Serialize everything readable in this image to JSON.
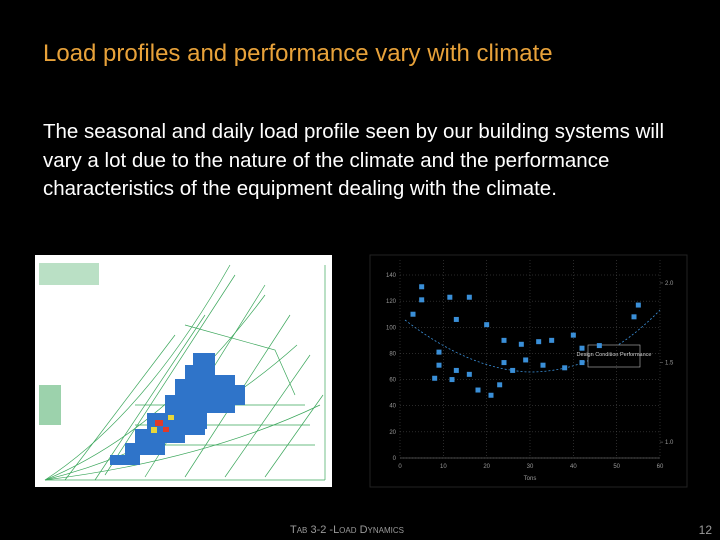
{
  "slide": {
    "title": "Load profiles and performance vary with climate",
    "body": "The seasonal and daily load profile seen by our building systems will vary a lot due to the nature of the climate and the performance characteristics of the equipment dealing with the climate.",
    "footer": "Tab 3-2 -Load Dynamics",
    "page_number": "12"
  },
  "chart_data": {
    "type": "scatter",
    "xlabel": "Tons",
    "annotation": "Design Condition Performance",
    "color": "#3a8fd8",
    "x": [
      5,
      5,
      11.5,
      16,
      13,
      3,
      20,
      24,
      28,
      32,
      35,
      40,
      54,
      55,
      42,
      46,
      24,
      26,
      29,
      33,
      38,
      42,
      8,
      16,
      18,
      21,
      23,
      9,
      13,
      12,
      9
    ],
    "y": [
      121,
      131,
      123,
      123,
      106,
      110,
      102,
      90,
      87,
      89,
      90,
      94,
      108,
      117,
      84,
      86,
      73,
      67,
      75,
      71,
      69,
      73,
      61,
      64,
      52,
      48,
      56,
      71,
      67,
      60,
      81
    ],
    "xlim": [
      0,
      60
    ],
    "ylim": [
      0,
      140
    ],
    "xticks": [
      0,
      10,
      20,
      30,
      40,
      50,
      60
    ],
    "yticks": [
      0,
      20,
      40,
      60,
      80,
      100,
      120,
      140
    ],
    "y2lim": [
      0.9,
      2.05
    ],
    "y2ticks": [
      {
        "value": 1,
        "label": "1.0"
      },
      1.5,
      {
        "value": 2,
        "label": "2.0"
      }
    ],
    "grid": true
  }
}
